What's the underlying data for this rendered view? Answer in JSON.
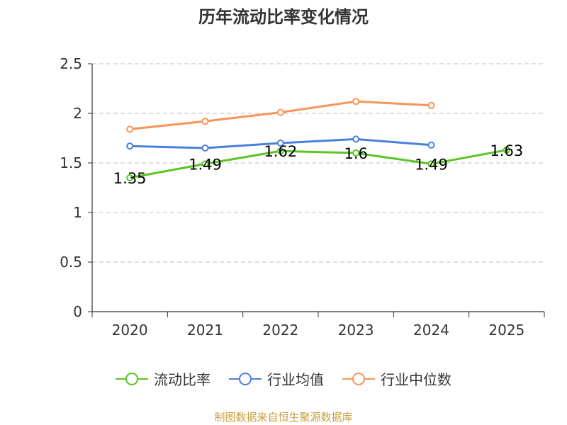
{
  "chart_data": {
    "type": "line",
    "title": "历年流动比率变化情况",
    "categories": [
      "2020",
      "2021",
      "2022",
      "2023",
      "2024",
      "2025"
    ],
    "ylim": [
      0,
      2.5
    ],
    "yticks": [
      "0",
      "0.5",
      "1",
      "1.5",
      "2",
      "2.5"
    ],
    "series": [
      {
        "name": "流动比率",
        "color": "#5cc424",
        "values": [
          1.35,
          1.49,
          1.62,
          1.6,
          1.49,
          1.63
        ],
        "labels": [
          "1.35",
          "1.49",
          "1.62",
          "1.6",
          "1.49",
          "1.63"
        ]
      },
      {
        "name": "行业均值",
        "color": "#4a7fdc",
        "values": [
          1.67,
          1.65,
          1.7,
          1.74,
          1.68,
          null
        ]
      },
      {
        "name": "行业中位数",
        "color": "#f8935a",
        "values": [
          1.84,
          1.92,
          2.01,
          2.12,
          2.08,
          null
        ]
      }
    ]
  },
  "footer": "制图数据来自恒生聚源数据库"
}
